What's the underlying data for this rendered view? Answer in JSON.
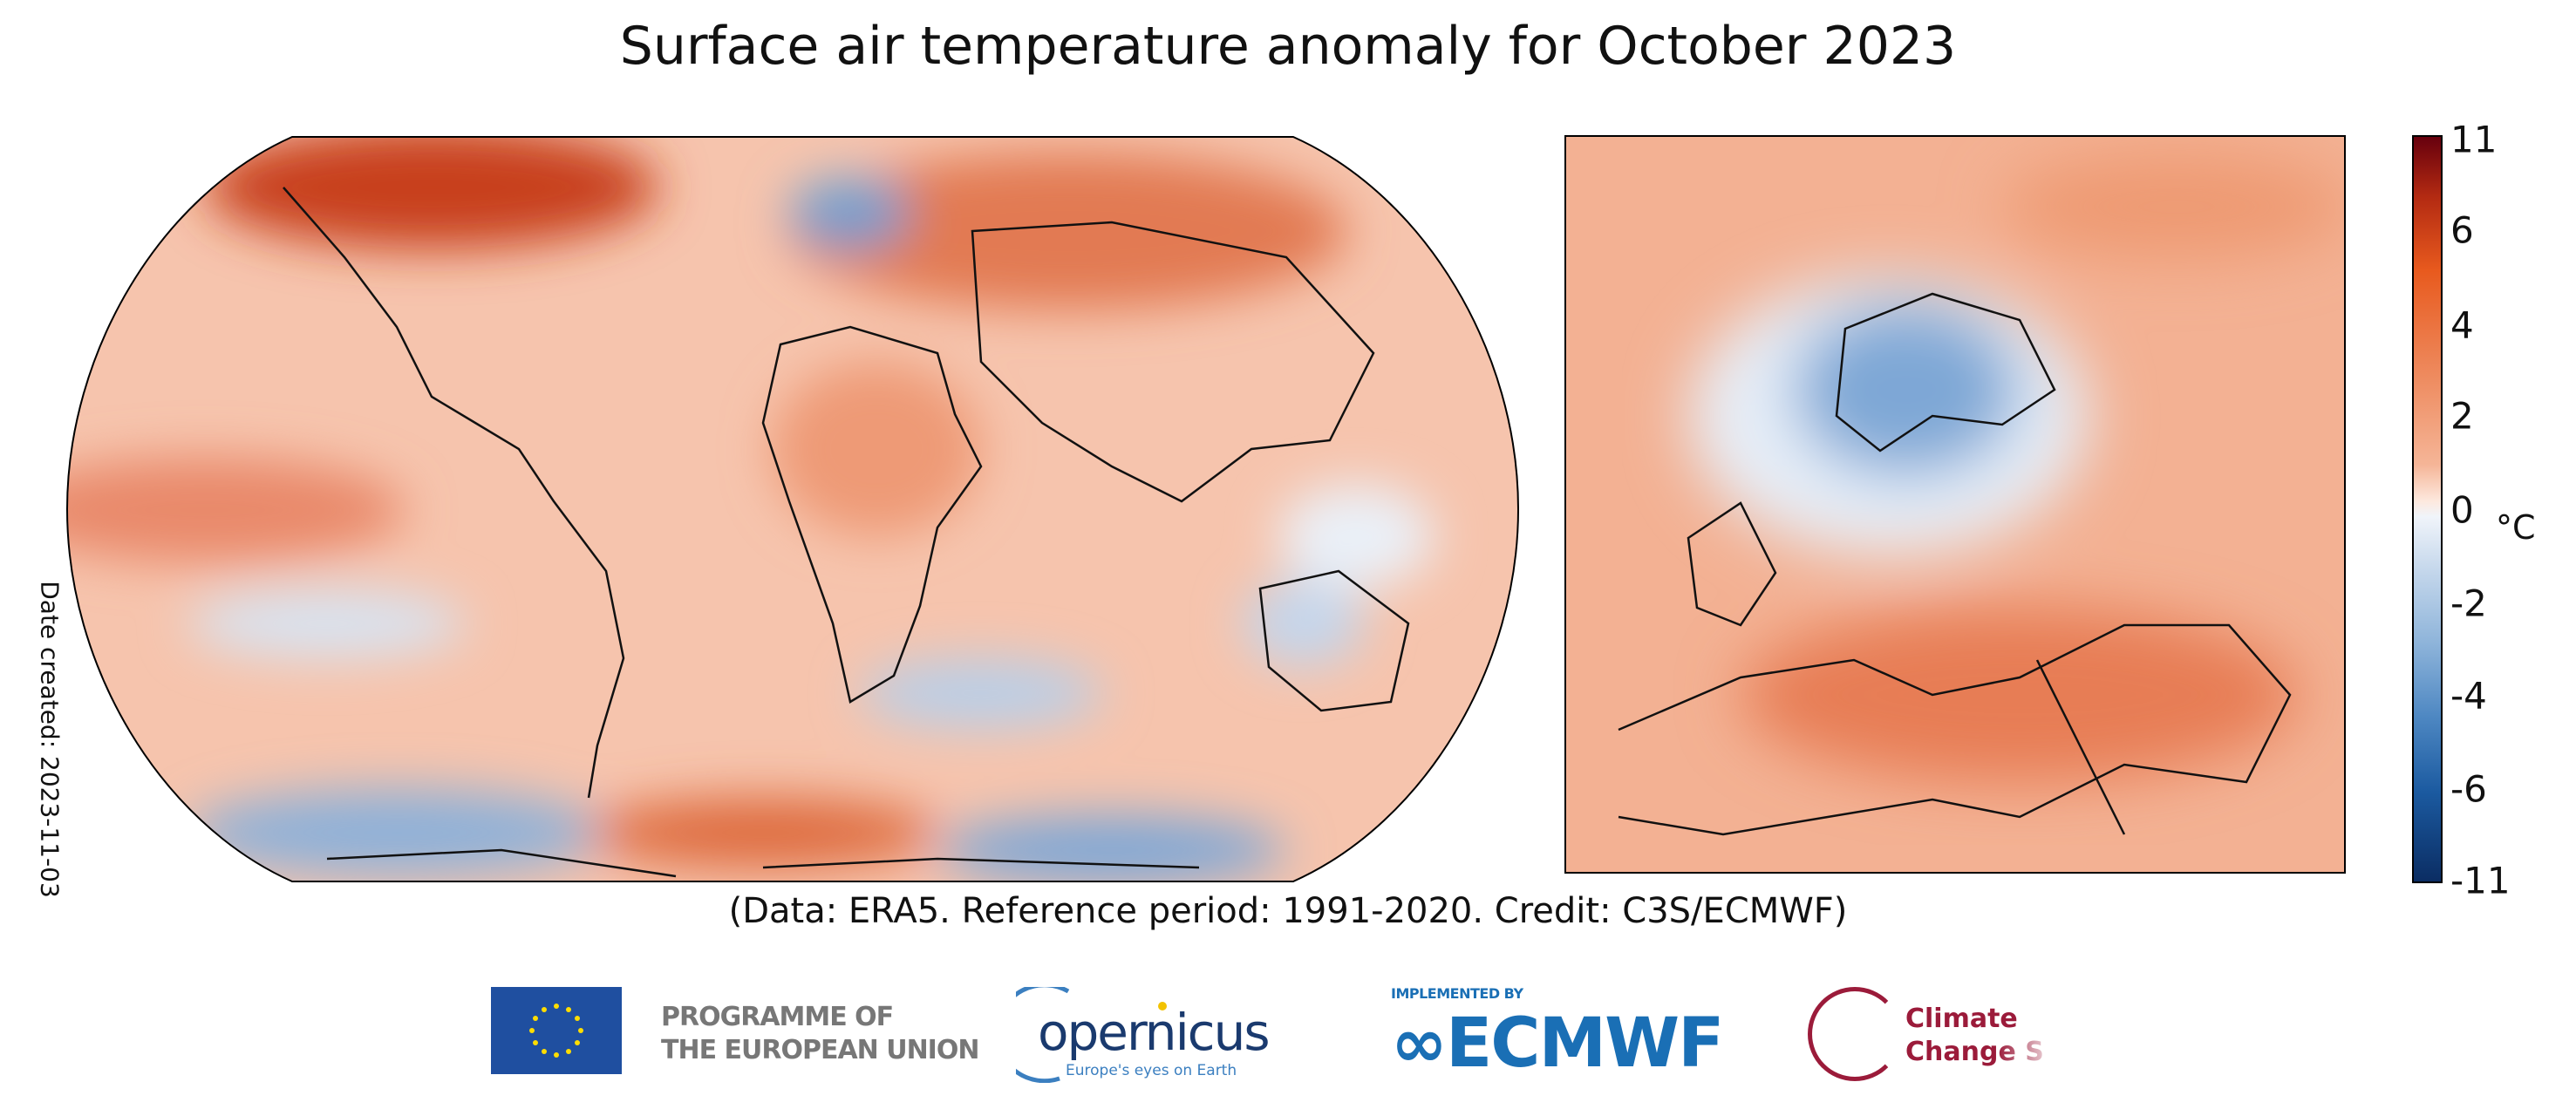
{
  "title": "Surface air temperature anomaly for October 2023",
  "date_created": "Date created: 2023-11-03",
  "credit": "(Data: ERA5.  Reference period: 1991-2020.  Credit: C3S/ECMWF)",
  "colorbar": {
    "unit": "°C",
    "ticks": [
      "11",
      "6",
      "4",
      "2",
      "0",
      "-2",
      "-4",
      "-6",
      "-11"
    ],
    "colors": {
      "warm_max": "#67000d",
      "warm": "#e85a1e",
      "neutral": "#fdf5f0",
      "cool": "#4d87c2",
      "cool_max": "#0b2d63"
    }
  },
  "maps": {
    "world": "global anomaly map",
    "europe": "European anomaly map"
  },
  "logos": {
    "eu": "PROGRAMME OF THE EUROPEAN UNION",
    "eu_line1": "PROGRAMME OF",
    "eu_line2": "THE EUROPEAN UNION",
    "copernicus": "opernicus",
    "copernicus_tag": "Europe's eyes on Earth",
    "ecmwf_implemented": "IMPLEMENTED BY",
    "ecmwf": "ECMWF",
    "c3s_line1": "Climate",
    "c3s_line2": "Change S"
  }
}
